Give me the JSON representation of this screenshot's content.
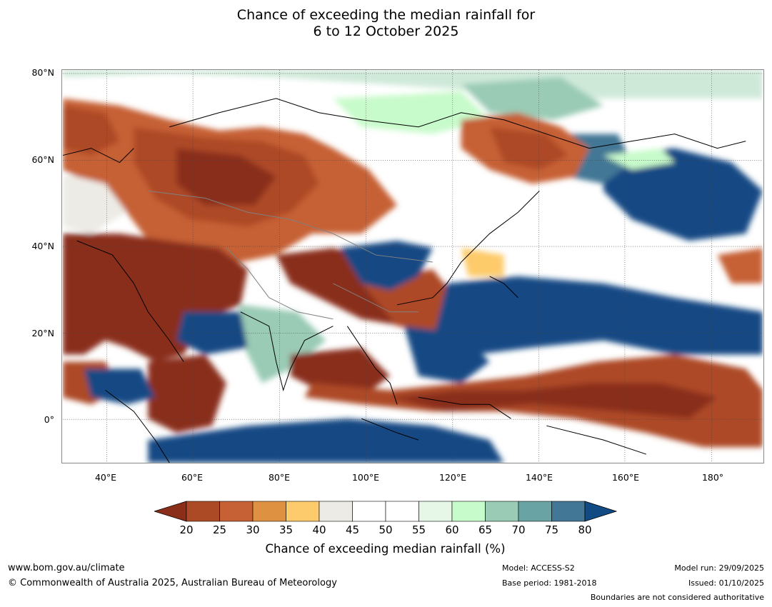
{
  "title_line1": "Chance of exceeding the median rainfall for",
  "title_line2": "6 to 12 October 2025",
  "lat_labels": [
    "80°N",
    "60°N",
    "40°N",
    "20°N",
    "0°"
  ],
  "lon_labels": [
    "40°E",
    "60°E",
    "80°E",
    "100°E",
    "120°E",
    "140°E",
    "160°E",
    "180°"
  ],
  "colorbar": {
    "ticks": [
      "20",
      "25",
      "30",
      "35",
      "40",
      "45",
      "50",
      "55",
      "60",
      "65",
      "70",
      "75",
      "80"
    ],
    "colors": [
      "#8a2e1a",
      "#ad4a26",
      "#c66135",
      "#de9140",
      "#fdcb6b",
      "#edebe5",
      "#ffffff",
      "#ffffff",
      "#e7f7e7",
      "#c8fbcb",
      "#9acbb5",
      "#6aa3a4",
      "#427795",
      "#124a84"
    ],
    "label": "Chance of exceeding median rainfall (%)"
  },
  "footer": {
    "url": "www.bom.gov.au/climate",
    "copyright": "© Commonwealth of Australia 2025, Australian Bureau of Meteorology",
    "model": "Model: ACCESS-S2",
    "base_period": "Base period: 1981-2018",
    "model_run": "Model run: 29/09/2025",
    "issued": "Issued: 01/10/2025",
    "disclaimer": "Boundaries are not considered authoritative"
  }
}
